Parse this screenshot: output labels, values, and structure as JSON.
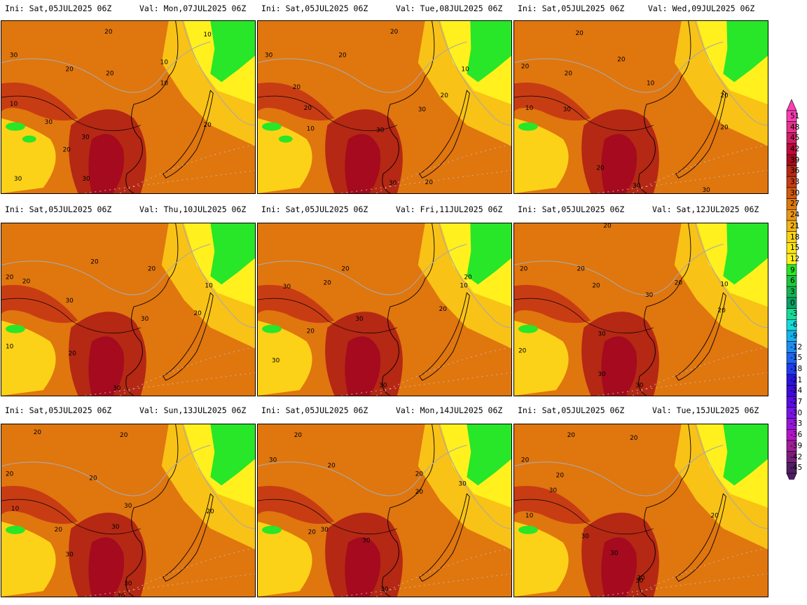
{
  "panels": [
    {
      "ini": "Ini: Sat,05JUL2025 06Z",
      "val": "Val: Mon,07JUL2025 06Z",
      "labels": [
        "20",
        "10",
        "10",
        "30",
        "20",
        "20",
        "10",
        "10",
        "30",
        "30",
        "20",
        "20",
        "30",
        "30"
      ]
    },
    {
      "ini": "Ini: Sat,05JUL2025 06Z",
      "val": "Val: Tue,08JUL2025 06Z",
      "labels": [
        "20",
        "30",
        "20",
        "10",
        "20",
        "20",
        "10",
        "30",
        "20",
        "30",
        "20",
        "30"
      ]
    },
    {
      "ini": "Ini: Sat,05JUL2025 06Z",
      "val": "Val: Wed,09JUL2025 06Z",
      "labels": [
        "20",
        "20",
        "20",
        "20",
        "10",
        "10",
        "20",
        "30",
        "20",
        "20",
        "30",
        "30"
      ]
    },
    {
      "ini": "Ini: Sat,05JUL2025 06Z",
      "val": "Val: Thu,10JUL2025 06Z",
      "labels": [
        "20",
        "20",
        "20",
        "10",
        "20",
        "30",
        "20",
        "20",
        "10",
        "30",
        "30"
      ]
    },
    {
      "ini": "Ini: Sat,05JUL2025 06Z",
      "val": "Val: Fri,11JUL2025 06Z",
      "labels": [
        "20",
        "30",
        "20",
        "20",
        "10",
        "30",
        "20",
        "30",
        "20",
        "30"
      ]
    },
    {
      "ini": "Ini: Sat,05JUL2025 06Z",
      "val": "Val: Sat,12JUL2025 06Z",
      "labels": [
        "20",
        "20",
        "20",
        "20",
        "30",
        "20",
        "10",
        "20",
        "30",
        "30",
        "20",
        "30"
      ]
    },
    {
      "ini": "Ini: Sat,05JUL2025 06Z",
      "val": "Val: Sun,13JUL2025 06Z",
      "labels": [
        "20",
        "20",
        "20",
        "20",
        "30",
        "20",
        "10",
        "30",
        "20",
        "30",
        "30",
        "30"
      ]
    },
    {
      "ini": "Ini: Sat,05JUL2025 06Z",
      "val": "Val: Mon,14JUL2025 06Z",
      "labels": [
        "20",
        "20",
        "30",
        "20",
        "30",
        "20",
        "20",
        "30",
        "30",
        "30"
      ]
    },
    {
      "ini": "Ini: Sat,05JUL2025 06Z",
      "val": "Val: Tue,15JUL2025 06Z",
      "labels": [
        "20",
        "20",
        "20",
        "20",
        "30",
        "10",
        "30",
        "30",
        "30",
        "20",
        "30"
      ]
    }
  ],
  "colorbar": {
    "values": [
      "51",
      "48",
      "45",
      "42",
      "39",
      "36",
      "33",
      "30",
      "27",
      "24",
      "21",
      "18",
      "15",
      "12",
      "9",
      "6",
      "3",
      "0",
      "-3",
      "-6",
      "-9",
      "-12",
      "-15",
      "-18",
      "-21",
      "-24",
      "-27",
      "-30",
      "-33",
      "-36",
      "-39",
      "-42",
      "-45"
    ],
    "colors": [
      "#ff3cb4",
      "#e6328c",
      "#d21e64",
      "#be0a3c",
      "#a50a1e",
      "#b42814",
      "#c83c14",
      "#d25a0a",
      "#e0780a",
      "#ec9614",
      "#f5b414",
      "#fad214",
      "#ffe614",
      "#fff01e",
      "#28e628",
      "#1ec83c",
      "#14b450",
      "#0aa064",
      "#14dc96",
      "#14dcdc",
      "#14b4f0",
      "#1e8cf0",
      "#1e64f0",
      "#1e3cf0",
      "#2814dc",
      "#3c0adc",
      "#5a0ae6",
      "#7814e6",
      "#9614dc",
      "#b414c8",
      "#a01e96",
      "#781e78",
      "#501e64"
    ]
  }
}
